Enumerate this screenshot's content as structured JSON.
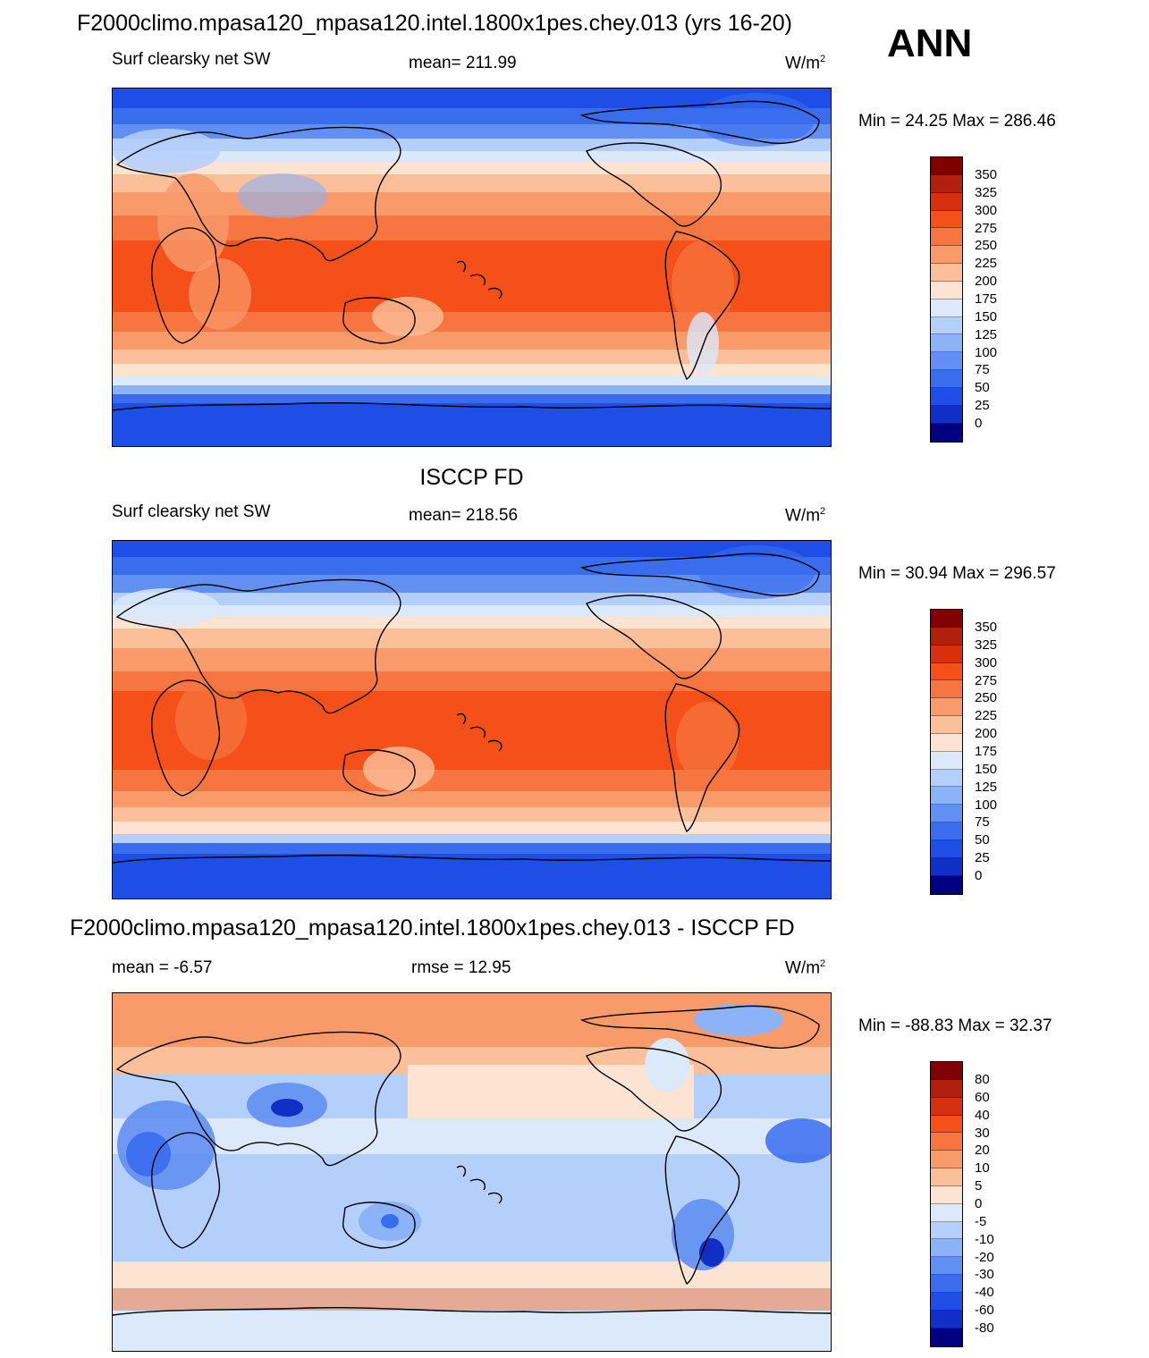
{
  "header": {
    "title": "F2000climo.mpasa120_mpasa120.intel.1800x1pes.chey.013 (yrs 16-20)",
    "season": "ANN"
  },
  "panels": [
    {
      "title": "",
      "left_label": "Surf clearsky net SW",
      "center_label": "mean= 211.99",
      "units": "W/m",
      "units_sup": "2",
      "minmax": "Min =  24.25 Max = 286.46",
      "colorbar": {
        "colors": [
          "#800000",
          "#b0200c",
          "#d7300e",
          "#f5501a",
          "#f77540",
          "#f99a6a",
          "#fbbf9a",
          "#fde4d2",
          "#dbe9fb",
          "#b4cffa",
          "#8cb2f7",
          "#628ff2",
          "#3a6cee",
          "#1f4ee6",
          "#102fc4",
          "#000080"
        ],
        "labels": [
          "350",
          "325",
          "300",
          "275",
          "250",
          "225",
          "200",
          "175",
          "150",
          "125",
          "100",
          "75",
          "50",
          "25",
          "0"
        ]
      }
    },
    {
      "title": "ISCCP FD",
      "left_label": "Surf clearsky net SW",
      "center_label": "mean= 218.56",
      "units": "W/m",
      "units_sup": "2",
      "minmax": "Min =  30.94 Max = 296.57",
      "colorbar": {
        "colors": [
          "#800000",
          "#b0200c",
          "#d7300e",
          "#f5501a",
          "#f77540",
          "#f99a6a",
          "#fbbf9a",
          "#fde4d2",
          "#dbe9fb",
          "#b4cffa",
          "#8cb2f7",
          "#628ff2",
          "#3a6cee",
          "#1f4ee6",
          "#102fc4",
          "#000080"
        ],
        "labels": [
          "350",
          "325",
          "300",
          "275",
          "250",
          "225",
          "200",
          "175",
          "150",
          "125",
          "100",
          "75",
          "50",
          "25",
          "0"
        ]
      }
    },
    {
      "title": "F2000climo.mpasa120_mpasa120.intel.1800x1pes.chey.013 - ISCCP FD",
      "left_label": "mean =  -6.57",
      "center_label": "rmse =  12.95",
      "units": "W/m",
      "units_sup": "2",
      "minmax": "Min = -88.83 Max =  32.37",
      "colorbar": {
        "colors": [
          "#800000",
          "#b0200c",
          "#d7300e",
          "#f5501a",
          "#f77540",
          "#f99a6a",
          "#fbbf9a",
          "#fde4d2",
          "#dbe9fb",
          "#b4cffa",
          "#8cb2f7",
          "#628ff2",
          "#3a6cee",
          "#1f4ee6",
          "#102fc4",
          "#000080"
        ],
        "labels": [
          "80",
          "60",
          "40",
          "30",
          "20",
          "10",
          "5",
          "0",
          "-5",
          "-10",
          "-20",
          "-30",
          "-40",
          "-60",
          "-80"
        ]
      }
    }
  ]
}
